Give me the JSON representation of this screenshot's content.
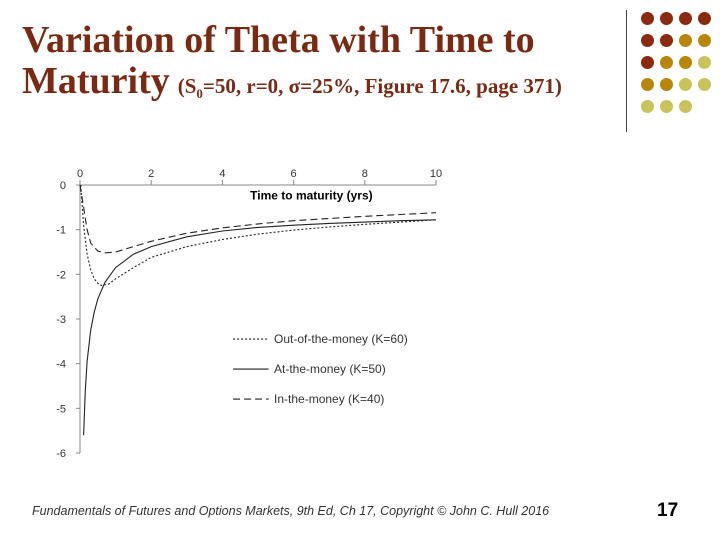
{
  "slide": {
    "title_line1": "Variation of Theta with Time to",
    "title_line2": "Maturity",
    "subtitle_pre": "(S",
    "subtitle_sub": "0",
    "subtitle_post": "=50, r=0, σ=25%, Figure 17.6, page 371)",
    "footer": "Fundamentals of Futures and Options Markets, 9th Ed, Ch 17, Copyright © John C. Hull 2016",
    "page_number": "17",
    "title_color": "#7a2a12",
    "decor_dot_colors": [
      "#8b2a10",
      "#b8860b",
      "#c8c35a"
    ]
  },
  "chart_data": {
    "type": "line",
    "xlabel": "Time to maturity (yrs)",
    "ylabel": "",
    "x_ticks": [
      "0",
      "2",
      "4",
      "6",
      "8",
      "10"
    ],
    "y_ticks": [
      "0",
      "-1",
      "-2",
      "-3",
      "-4",
      "-5",
      "-6"
    ],
    "xlim": [
      0,
      10
    ],
    "ylim": [
      -6,
      0
    ],
    "x_axis_position": "top",
    "legend_position": "bottom-center",
    "grid": false,
    "series": [
      {
        "name": "Out-of-the-money (K=60)",
        "style": "dotted",
        "x": [
          0.02,
          0.1,
          0.2,
          0.3,
          0.4,
          0.5,
          0.6,
          0.8,
          1,
          1.5,
          2,
          3,
          4,
          5,
          6,
          7,
          8,
          9,
          10
        ],
        "y": [
          0,
          -0.9,
          -1.55,
          -1.9,
          -2.1,
          -2.2,
          -2.25,
          -2.22,
          -2.1,
          -1.85,
          -1.62,
          -1.38,
          -1.22,
          -1.1,
          -1.01,
          -0.94,
          -0.88,
          -0.83,
          -0.78
        ]
      },
      {
        "name": "At-the-money (K=50)",
        "style": "solid",
        "x": [
          0.1,
          0.15,
          0.2,
          0.3,
          0.4,
          0.5,
          0.7,
          1,
          1.5,
          2,
          3,
          4,
          5,
          6,
          7,
          8,
          9,
          10
        ],
        "y": [
          -5.6,
          -4.6,
          -3.95,
          -3.25,
          -2.85,
          -2.55,
          -2.18,
          -1.85,
          -1.55,
          -1.38,
          -1.16,
          -1.03,
          -0.95,
          -0.9,
          -0.86,
          -0.83,
          -0.8,
          -0.78
        ]
      },
      {
        "name": "In-the-money (K=40)",
        "style": "dashed",
        "x": [
          0,
          0.1,
          0.2,
          0.3,
          0.5,
          0.7,
          1,
          1.5,
          2,
          3,
          4,
          5,
          6,
          7,
          8,
          9,
          10
        ],
        "y": [
          0,
          -0.5,
          -1.0,
          -1.3,
          -1.48,
          -1.52,
          -1.5,
          -1.38,
          -1.26,
          -1.08,
          -0.96,
          -0.87,
          -0.8,
          -0.75,
          -0.7,
          -0.66,
          -0.62
        ]
      }
    ]
  }
}
